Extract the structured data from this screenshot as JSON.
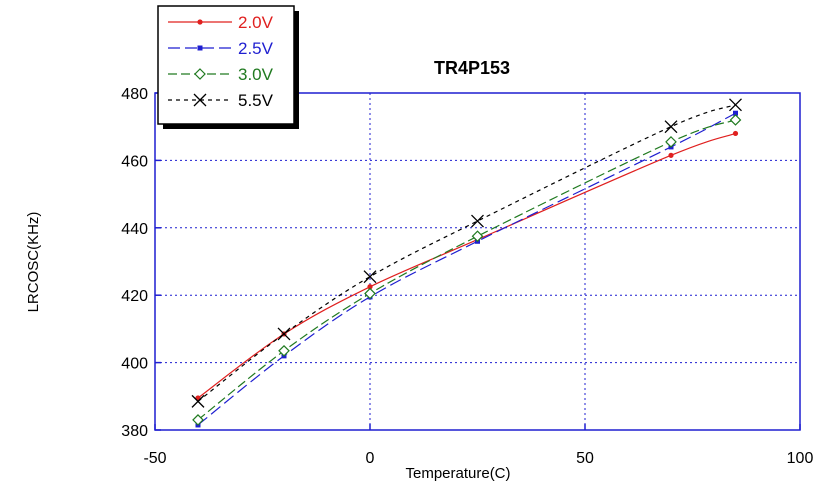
{
  "chart_data": {
    "type": "line",
    "title": "TR4P153",
    "xlabel": "Temperature(C)",
    "ylabel": "LRCOSC(KHz)",
    "xlim": [
      -50,
      100
    ],
    "ylim": [
      380,
      480
    ],
    "xticks": [
      "-50",
      "0",
      "50",
      "100"
    ],
    "yticks": [
      "380",
      "400",
      "420",
      "440",
      "460",
      "480"
    ],
    "grid": true,
    "legend_position": "top-left",
    "series": [
      {
        "name": "2.0V",
        "color": "#e0201f",
        "marker": "dot",
        "dash": "solid",
        "x": [
          -40,
          -20,
          0,
          25,
          70,
          85
        ],
        "y": [
          389.5,
          408.5,
          422.5,
          436.5,
          461.5,
          468
        ]
      },
      {
        "name": "2.5V",
        "color": "#1f1fd0",
        "marker": "square",
        "dash": "long-dash",
        "x": [
          -40,
          -20,
          0,
          25,
          70,
          85
        ],
        "y": [
          381.5,
          402,
          419.5,
          436,
          464,
          474
        ]
      },
      {
        "name": "3.0V",
        "color": "#207a20",
        "marker": "diamond",
        "dash": "dash",
        "x": [
          -40,
          -20,
          0,
          25,
          70,
          85
        ],
        "y": [
          383,
          403.5,
          420.5,
          437.5,
          465.5,
          472
        ]
      },
      {
        "name": "5.5V",
        "color": "#000000",
        "marker": "x",
        "dash": "dotted",
        "x": [
          -40,
          -20,
          0,
          25,
          70,
          85
        ],
        "y": [
          388.5,
          408.5,
          425.5,
          442,
          470,
          476.5
        ]
      }
    ]
  }
}
